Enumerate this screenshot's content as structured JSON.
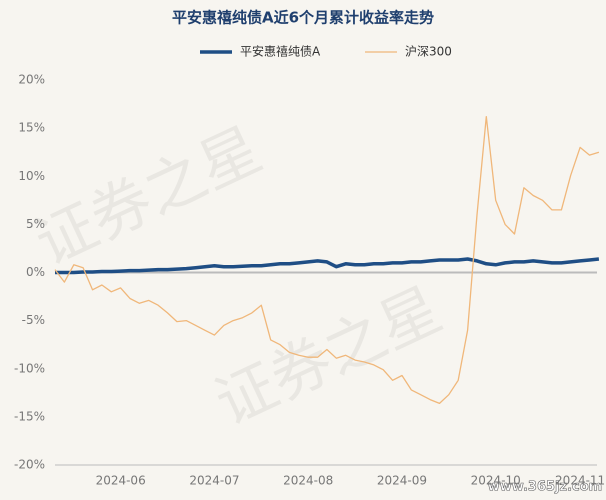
{
  "chart_data": {
    "type": "line",
    "title": "平安惠禧纯债A近6个月累计收益率走势",
    "watermark": "证券之星",
    "source": "www.365jz.com",
    "categories": [
      null,
      null,
      null,
      null,
      null,
      null,
      null,
      "2024-06",
      null,
      null,
      null,
      null,
      null,
      null,
      null,
      null,
      null,
      "2024-07",
      null,
      null,
      null,
      null,
      null,
      null,
      null,
      null,
      null,
      "2024-08",
      null,
      null,
      null,
      null,
      null,
      null,
      null,
      null,
      null,
      "2024-09",
      null,
      null,
      null,
      null,
      null,
      null,
      null,
      null,
      null,
      "2024-10",
      null,
      null,
      null,
      null,
      null,
      null,
      null,
      null,
      "2024-11",
      null,
      null
    ],
    "series": [
      {
        "name": "平安惠禧纯债A",
        "color": "#1f4e85",
        "width": 3.5,
        "values": [
          0,
          0,
          0,
          0.05,
          0.05,
          0.1,
          0.1,
          0.15,
          0.2,
          0.2,
          0.25,
          0.3,
          0.3,
          0.35,
          0.4,
          0.5,
          0.6,
          0.7,
          0.6,
          0.6,
          0.65,
          0.7,
          0.7,
          0.8,
          0.9,
          0.9,
          1.0,
          1.1,
          1.2,
          1.1,
          0.6,
          0.9,
          0.8,
          0.8,
          0.9,
          0.9,
          1.0,
          1.0,
          1.1,
          1.1,
          1.2,
          1.3,
          1.3,
          1.3,
          1.4,
          1.2,
          0.9,
          0.8,
          1.0,
          1.1,
          1.1,
          1.2,
          1.1,
          1.0,
          1.0,
          1.1,
          1.2,
          1.3,
          1.4
        ]
      },
      {
        "name": "沪深300",
        "color": "#f0b77a",
        "width": 1.3,
        "values": [
          0.3,
          -1,
          0.8,
          0.5,
          -1.8,
          -1.3,
          -2,
          -1.6,
          -2.7,
          -3.2,
          -2.9,
          -3.4,
          -4.2,
          -5.1,
          -5,
          -5.5,
          -6,
          -6.5,
          -5.5,
          -5,
          -4.7,
          -4.2,
          -3.4,
          -7,
          -7.5,
          -8.3,
          -8.6,
          -8.8,
          -8.8,
          -8,
          -8.9,
          -8.6,
          -9.1,
          -9.3,
          -9.6,
          -10.1,
          -11.2,
          -10.7,
          -12.2,
          -12.7,
          -13.2,
          -13.6,
          -12.7,
          -11.2,
          -6,
          6,
          16.2,
          7.5,
          5,
          4,
          8.8,
          8,
          7.5,
          6.5,
          6.5,
          10.1,
          13,
          12.2,
          12.5
        ]
      }
    ],
    "ylim": [
      -20,
      20
    ],
    "yticks": [
      {
        "value": -20,
        "label": "-20%"
      },
      {
        "value": -15,
        "label": "-15%"
      },
      {
        "value": -10,
        "label": "-10%"
      },
      {
        "value": -5,
        "label": "-5%"
      },
      {
        "value": 0,
        "label": "0%"
      },
      {
        "value": 5,
        "label": "5%"
      },
      {
        "value": 10,
        "label": "10%"
      },
      {
        "value": 15,
        "label": "15%"
      },
      {
        "value": 20,
        "label": "20%"
      }
    ],
    "grid": false
  }
}
